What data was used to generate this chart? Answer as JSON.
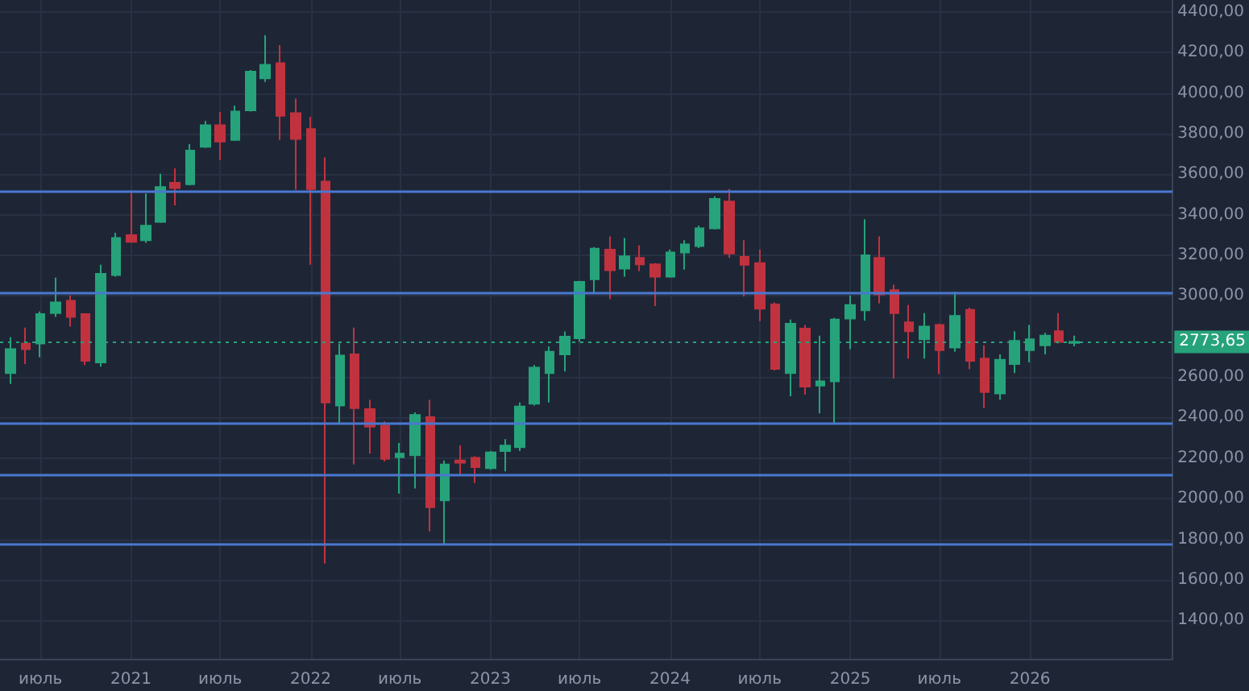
{
  "chart_data": {
    "type": "candlestick",
    "x": [
      "2020-05",
      "2020-06",
      "2020-07",
      "2020-08",
      "2020-09",
      "2020-10",
      "2020-11",
      "2020-12",
      "2021-01",
      "2021-02",
      "2021-03",
      "2021-04",
      "2021-05",
      "2021-06",
      "2021-07",
      "2021-08",
      "2021-09",
      "2021-10",
      "2021-11",
      "2021-12",
      "2022-01",
      "2022-02",
      "2022-03",
      "2022-04",
      "2022-05",
      "2022-06",
      "2022-07",
      "2022-08",
      "2022-09",
      "2022-10",
      "2022-11",
      "2022-12",
      "2023-01",
      "2023-02",
      "2023-03",
      "2023-04",
      "2023-05",
      "2023-06",
      "2023-07",
      "2023-08",
      "2023-09",
      "2023-10",
      "2023-11",
      "2023-12",
      "2024-01",
      "2024-02",
      "2024-03",
      "2024-04",
      "2024-05",
      "2024-06",
      "2024-07",
      "2024-08",
      "2024-09",
      "2024-10",
      "2024-11",
      "2024-12",
      "2025-01",
      "2025-02",
      "2025-03",
      "2025-04",
      "2025-05",
      "2025-06",
      "2025-07",
      "2025-08",
      "2025-09",
      "2025-10",
      "2025-11",
      "2025-12",
      "2026-01",
      "2026-02",
      "2026-03",
      "2026-04"
    ],
    "ohlc": [
      [
        2619,
        2796,
        2566,
        2738
      ],
      [
        2765,
        2844,
        2664,
        2738
      ],
      [
        2765,
        2923,
        2698,
        2910
      ],
      [
        2915,
        3090,
        2897,
        2968
      ],
      [
        2976,
        3003,
        2849,
        2897
      ],
      [
        2910,
        2910,
        2659,
        2680
      ],
      [
        2672,
        3154,
        2651,
        3109
      ],
      [
        3103,
        3312,
        3095,
        3286
      ],
      [
        3300,
        3519,
        3262,
        3267
      ],
      [
        3275,
        3505,
        3262,
        3347
      ],
      [
        3365,
        3603,
        3360,
        3537
      ],
      [
        3558,
        3630,
        3447,
        3532
      ],
      [
        3551,
        3749,
        3545,
        3717
      ],
      [
        3736,
        3863,
        3730,
        3842
      ],
      [
        3842,
        3908,
        3670,
        3762
      ],
      [
        3770,
        3939,
        3765,
        3910
      ],
      [
        3916,
        4114,
        3910,
        4106
      ],
      [
        4074,
        4286,
        4056,
        4140
      ],
      [
        4148,
        4238,
        3770,
        3889
      ],
      [
        3902,
        3974,
        3524,
        3775
      ],
      [
        3823,
        3884,
        3154,
        3527
      ],
      [
        3564,
        3683,
        1680,
        2474
      ],
      [
        2460,
        2765,
        2368,
        2706
      ],
      [
        2712,
        2844,
        2169,
        2447
      ],
      [
        2442,
        2487,
        2222,
        2355
      ],
      [
        2360,
        2381,
        2183,
        2196
      ],
      [
        2204,
        2275,
        2024,
        2222
      ],
      [
        2214,
        2426,
        2050,
        2413
      ],
      [
        2402,
        2487,
        1839,
        1958
      ],
      [
        1992,
        2188,
        1778,
        2169
      ],
      [
        2188,
        2262,
        2116,
        2177
      ],
      [
        2201,
        2209,
        2077,
        2156
      ],
      [
        2151,
        2235,
        2143,
        2228
      ],
      [
        2235,
        2294,
        2135,
        2262
      ],
      [
        2254,
        2474,
        2235,
        2455
      ],
      [
        2468,
        2659,
        2460,
        2646
      ],
      [
        2619,
        2751,
        2474,
        2725
      ],
      [
        2712,
        2825,
        2627,
        2799
      ],
      [
        2791,
        3074,
        2773,
        3069
      ],
      [
        3082,
        3241,
        3016,
        3233
      ],
      [
        3228,
        3294,
        2984,
        3127
      ],
      [
        3135,
        3286,
        3095,
        3196
      ],
      [
        3188,
        3249,
        3122,
        3156
      ],
      [
        3156,
        3162,
        2950,
        3095
      ],
      [
        3095,
        3228,
        3090,
        3214
      ],
      [
        3214,
        3275,
        3130,
        3254
      ],
      [
        3246,
        3347,
        3236,
        3334
      ],
      [
        3334,
        3492,
        3328,
        3479
      ],
      [
        3466,
        3527,
        3188,
        3209
      ],
      [
        3193,
        3275,
        2997,
        3154
      ],
      [
        3162,
        3228,
        2876,
        2937
      ],
      [
        2958,
        2968,
        2632,
        2640
      ],
      [
        2619,
        2884,
        2505,
        2863
      ],
      [
        2839,
        2857,
        2513,
        2553
      ],
      [
        2558,
        2804,
        2421,
        2579
      ],
      [
        2579,
        2892,
        2368,
        2884
      ],
      [
        2889,
        3003,
        2738,
        2955
      ],
      [
        2929,
        3378,
        2878,
        3201
      ],
      [
        3188,
        3294,
        2963,
        3008
      ],
      [
        3029,
        3056,
        2593,
        2915
      ],
      [
        2870,
        2955,
        2691,
        2826
      ],
      [
        2786,
        2915,
        2691,
        2849
      ],
      [
        2857,
        2863,
        2614,
        2733
      ],
      [
        2746,
        3021,
        2725,
        2902
      ],
      [
        2931,
        2942,
        2638,
        2680
      ],
      [
        2691,
        2757,
        2447,
        2526
      ],
      [
        2519,
        2712,
        2487,
        2685
      ],
      [
        2664,
        2826,
        2619,
        2778
      ],
      [
        2733,
        2857,
        2672,
        2786
      ],
      [
        2757,
        2818,
        2712,
        2804
      ],
      [
        2826,
        2915,
        2765,
        2773
      ],
      [
        2768,
        2804,
        2752,
        2773.65
      ]
    ],
    "colors": [
      "#26a37a",
      "#c1323f",
      "#26a37a",
      "#26a37a",
      "#c1323f",
      "#c1323f",
      "#26a37a",
      "#26a37a",
      "#c1323f",
      "#26a37a",
      "#26a37a",
      "#c1323f",
      "#26a37a",
      "#26a37a",
      "#c1323f",
      "#26a37a",
      "#26a37a",
      "#26a37a",
      "#c1323f",
      "#c1323f",
      "#c1323f",
      "#c1323f",
      "#26a37a",
      "#c1323f",
      "#c1323f",
      "#c1323f",
      "#26a37a",
      "#26a37a",
      "#c1323f",
      "#26a37a",
      "#c1323f",
      "#c1323f",
      "#26a37a",
      "#26a37a",
      "#26a37a",
      "#26a37a",
      "#26a37a",
      "#26a37a",
      "#26a37a",
      "#26a37a",
      "#c1323f",
      "#26a37a",
      "#c1323f",
      "#c1323f",
      "#26a37a",
      "#26a37a",
      "#26a37a",
      "#26a37a",
      "#c1323f",
      "#c1323f",
      "#c1323f",
      "#c1323f",
      "#26a37a",
      "#c1323f",
      "#26a37a",
      "#26a37a",
      "#26a37a",
      "#26a37a",
      "#c1323f",
      "#c1323f",
      "#c1323f",
      "#26a37a",
      "#c1323f",
      "#26a37a",
      "#c1323f",
      "#c1323f",
      "#26a37a",
      "#26a37a",
      "#26a37a",
      "#26a37a",
      "#c1323f",
      "#26a37a"
    ],
    "xlim": [
      "2020-04-10",
      "2026-10-18"
    ],
    "xticks": [
      {
        "value": "2020-07",
        "label": "июль"
      },
      {
        "value": "2021-01",
        "label": "2021"
      },
      {
        "value": "2021-07",
        "label": "июль"
      },
      {
        "value": "2022-01",
        "label": "2022"
      },
      {
        "value": "2022-07",
        "label": "июль"
      },
      {
        "value": "2023-01",
        "label": "2023"
      },
      {
        "value": "2023-07",
        "label": "июль"
      },
      {
        "value": "2024-01",
        "label": "2024"
      },
      {
        "value": "2024-07",
        "label": "июль"
      },
      {
        "value": "2025-01",
        "label": "2025"
      },
      {
        "value": "2025-07",
        "label": "июль"
      },
      {
        "value": "2026-01",
        "label": "2026"
      }
    ],
    "ylim": [
      1210,
      4460
    ],
    "yticks": [
      {
        "value": 1400,
        "label": "1400,00"
      },
      {
        "value": 1600,
        "label": "1600,00"
      },
      {
        "value": 1800,
        "label": "1800,00"
      },
      {
        "value": 2000,
        "label": "2000,00"
      },
      {
        "value": 2200,
        "label": "2200,00"
      },
      {
        "value": 2400,
        "label": "2400,00"
      },
      {
        "value": 2600,
        "label": "2600,00"
      },
      {
        "value": 3000,
        "label": "3000,00"
      },
      {
        "value": 3200,
        "label": "3200,00"
      },
      {
        "value": 3400,
        "label": "3400,00"
      },
      {
        "value": 3600,
        "label": "3600,00"
      },
      {
        "value": 3800,
        "label": "3800,00"
      },
      {
        "value": 4000,
        "label": "4000,00"
      },
      {
        "value": 4200,
        "label": "4200,00"
      },
      {
        "value": 4400,
        "label": "4400,00"
      }
    ],
    "grid": true,
    "ref_lines": [
      {
        "axis": "y",
        "value": 3513,
        "color": "#4a78d0",
        "line_style": "solid"
      },
      {
        "axis": "y",
        "value": 3017,
        "color": "#4a78d0",
        "line_style": "solid"
      },
      {
        "axis": "y",
        "value": 2370,
        "color": "#4a78d0",
        "line_style": "solid"
      },
      {
        "axis": "y",
        "value": 2120,
        "color": "#4a78d0",
        "line_style": "solid"
      },
      {
        "axis": "y",
        "value": 1775,
        "color": "#4a78d0",
        "line_style": "solid"
      },
      {
        "axis": "y",
        "value": 2773.65,
        "label": "2773,65",
        "color": "#26a37a",
        "line_style": "dotted"
      }
    ]
  }
}
